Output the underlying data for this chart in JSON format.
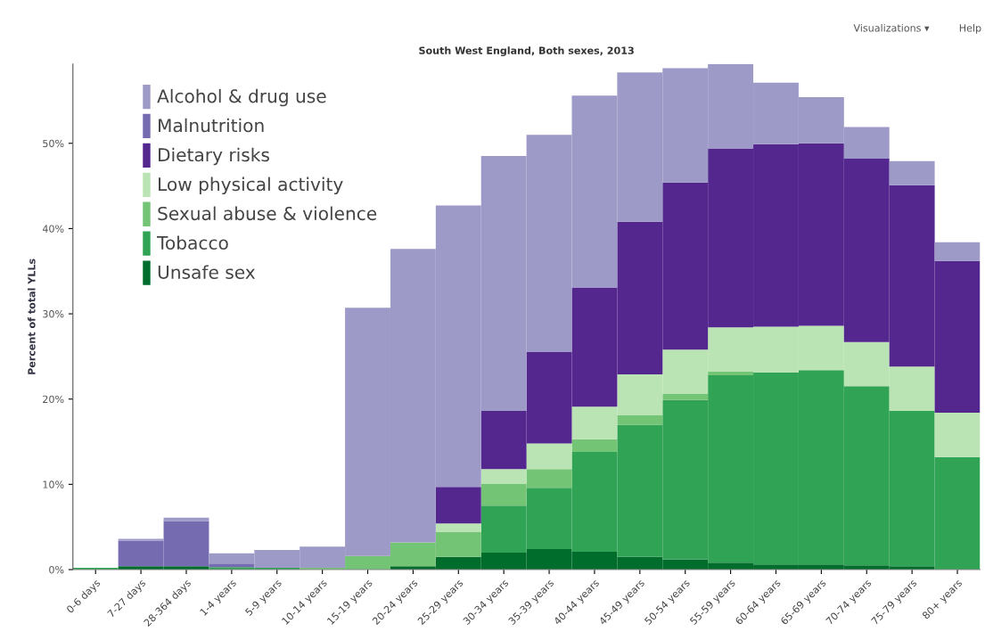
{
  "chart_data": {
    "type": "bar",
    "title": "South West England, Both sexes, 2013",
    "ylabel": "Percent of total YLLs",
    "annotations": [
      "Visualizations ▾",
      "Help"
    ],
    "categories": [
      "0-6 days",
      "7-27 days",
      "28-364 days",
      "1-4 years",
      "5-9 years",
      "10-14 years",
      "15-19 years",
      "20-24 years",
      "25-29 years",
      "30-34 years",
      "35-39 years",
      "40-44 years",
      "45-49 years",
      "50-54 years",
      "55-59 years",
      "60-64 years",
      "65-69 years",
      "70-74 years",
      "75-79 years",
      "80+ years"
    ],
    "stacked": true,
    "series": [
      {
        "name": "Unsafe sex",
        "color": "#006d2c",
        "values": [
          0,
          0.4,
          0.4,
          0,
          0,
          0,
          0,
          0.4,
          1.5,
          2.0,
          2.4,
          2.1,
          1.5,
          1.2,
          0.8,
          0.6,
          0.6,
          0.5,
          0.4,
          null
        ]
      },
      {
        "name": "Tobacco",
        "color": "#31a354",
        "values": [
          0.2,
          0,
          0,
          0.3,
          0.2,
          0,
          0,
          0,
          0,
          5.5,
          7.2,
          11.7,
          15.5,
          18.7,
          22.0,
          22.5,
          22.8,
          21.0,
          18.2,
          13.2
        ]
      },
      {
        "name": "Sexual abuse & violence",
        "color": "#74c476",
        "values": [
          0,
          0,
          0,
          0,
          0,
          0.2,
          1.6,
          2.8,
          2.9,
          2.6,
          2.2,
          1.5,
          1.1,
          0.7,
          0.4,
          0,
          0,
          0,
          0,
          0
        ]
      },
      {
        "name": "Low physical activity",
        "color": "#bae4b3",
        "values": [
          0,
          0,
          0,
          0,
          0,
          0,
          0,
          0,
          1.0,
          1.7,
          3.0,
          3.8,
          4.8,
          5.2,
          5.2,
          5.4,
          5.2,
          5.2,
          5.2,
          5.2
        ]
      },
      {
        "name": "Dietary risks",
        "color": "#54278f",
        "values": [
          0,
          0,
          0,
          0,
          0,
          0,
          0,
          0,
          4.3,
          6.8,
          10.7,
          14.0,
          17.9,
          19.6,
          21.0,
          21.4,
          21.4,
          21.5,
          21.3,
          17.8
        ]
      },
      {
        "name": "Malnutrition",
        "color": "#756bb1",
        "values": [
          0,
          3.0,
          5.3,
          0.4,
          0,
          0,
          0,
          0,
          0,
          0,
          0,
          0,
          0,
          0,
          0,
          0,
          0,
          0,
          0,
          0
        ]
      },
      {
        "name": "Alcohol & drug use",
        "color": "#9e9ac8",
        "values": [
          0,
          0.2,
          0.4,
          1.2,
          2.1,
          2.5,
          29.1,
          34.4,
          33.0,
          29.9,
          25.5,
          22.5,
          17.5,
          13.4,
          9.9,
          7.2,
          5.4,
          3.7,
          2.8,
          2.2
        ]
      }
    ],
    "ylim": [
      0,
      59.3
    ],
    "yticks": [
      {
        "value": 0,
        "label": "0%"
      },
      {
        "value": 10,
        "label": "10%"
      },
      {
        "value": 20,
        "label": "20%"
      },
      {
        "value": 30,
        "label": "30%"
      },
      {
        "value": 40,
        "label": "40%"
      },
      {
        "value": 50,
        "label": "50%"
      }
    ],
    "grid": false,
    "legend": "top left"
  }
}
